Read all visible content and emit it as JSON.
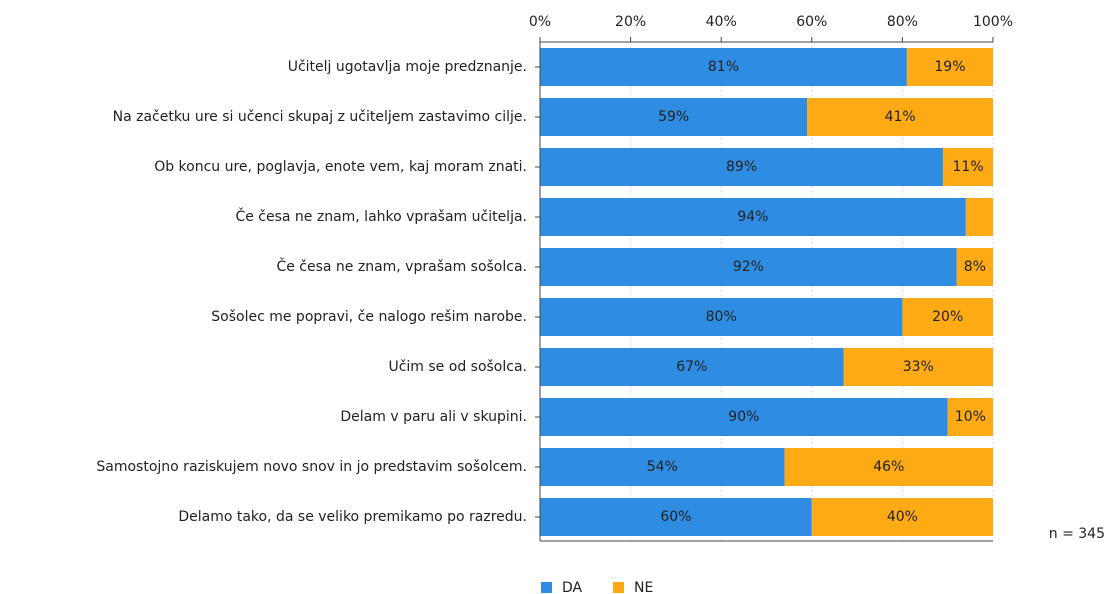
{
  "chart_data": {
    "type": "stacked_bar_horizontal",
    "categories": [
      "Učitelj ugotavlja moje predznanje.",
      "Na začetku ure si učenci skupaj z učiteljem zastavimo cilje.",
      "Ob koncu ure, poglavja, enote vem, kaj moram znati.",
      "Če česa ne znam, lahko vprašam učitelja.",
      "Če česa ne znam, vprašam sošolca.",
      "Sošolec me popravi, če nalogo rešim narobe.",
      "Učim se od sošolca.",
      "Delam v paru ali v skupini.",
      "Samostojno raziskujem novo snov in jo predstavim sošolcem.",
      "Delamo tako, da se veliko premikamo po razredu."
    ],
    "series": [
      {
        "name": "DA",
        "color": "#2e8de2",
        "values": [
          81,
          59,
          89,
          94,
          92,
          80,
          67,
          90,
          54,
          60
        ],
        "value_labels": [
          "81%",
          "59%",
          "89%",
          "94%",
          "92%",
          "80%",
          "67%",
          "90%",
          "54%",
          "60%"
        ]
      },
      {
        "name": "NE",
        "color": "#fdaa14",
        "values": [
          19,
          41,
          11,
          6,
          8,
          20,
          33,
          10,
          46,
          40
        ],
        "value_labels": [
          "19%",
          "41%",
          "11%",
          null,
          "8%",
          "20%",
          "33%",
          "10%",
          "46%",
          "40%"
        ]
      }
    ],
    "xlim": [
      0,
      100
    ],
    "xticks": [
      {
        "value": 0,
        "label": "0%"
      },
      {
        "value": 20,
        "label": "20%"
      },
      {
        "value": 40,
        "label": "40%"
      },
      {
        "value": 60,
        "label": "60%"
      },
      {
        "value": 80,
        "label": "80%"
      },
      {
        "value": 100,
        "label": "100%"
      }
    ],
    "grid": true,
    "legend": "bottom",
    "annotation": "n = 345"
  }
}
